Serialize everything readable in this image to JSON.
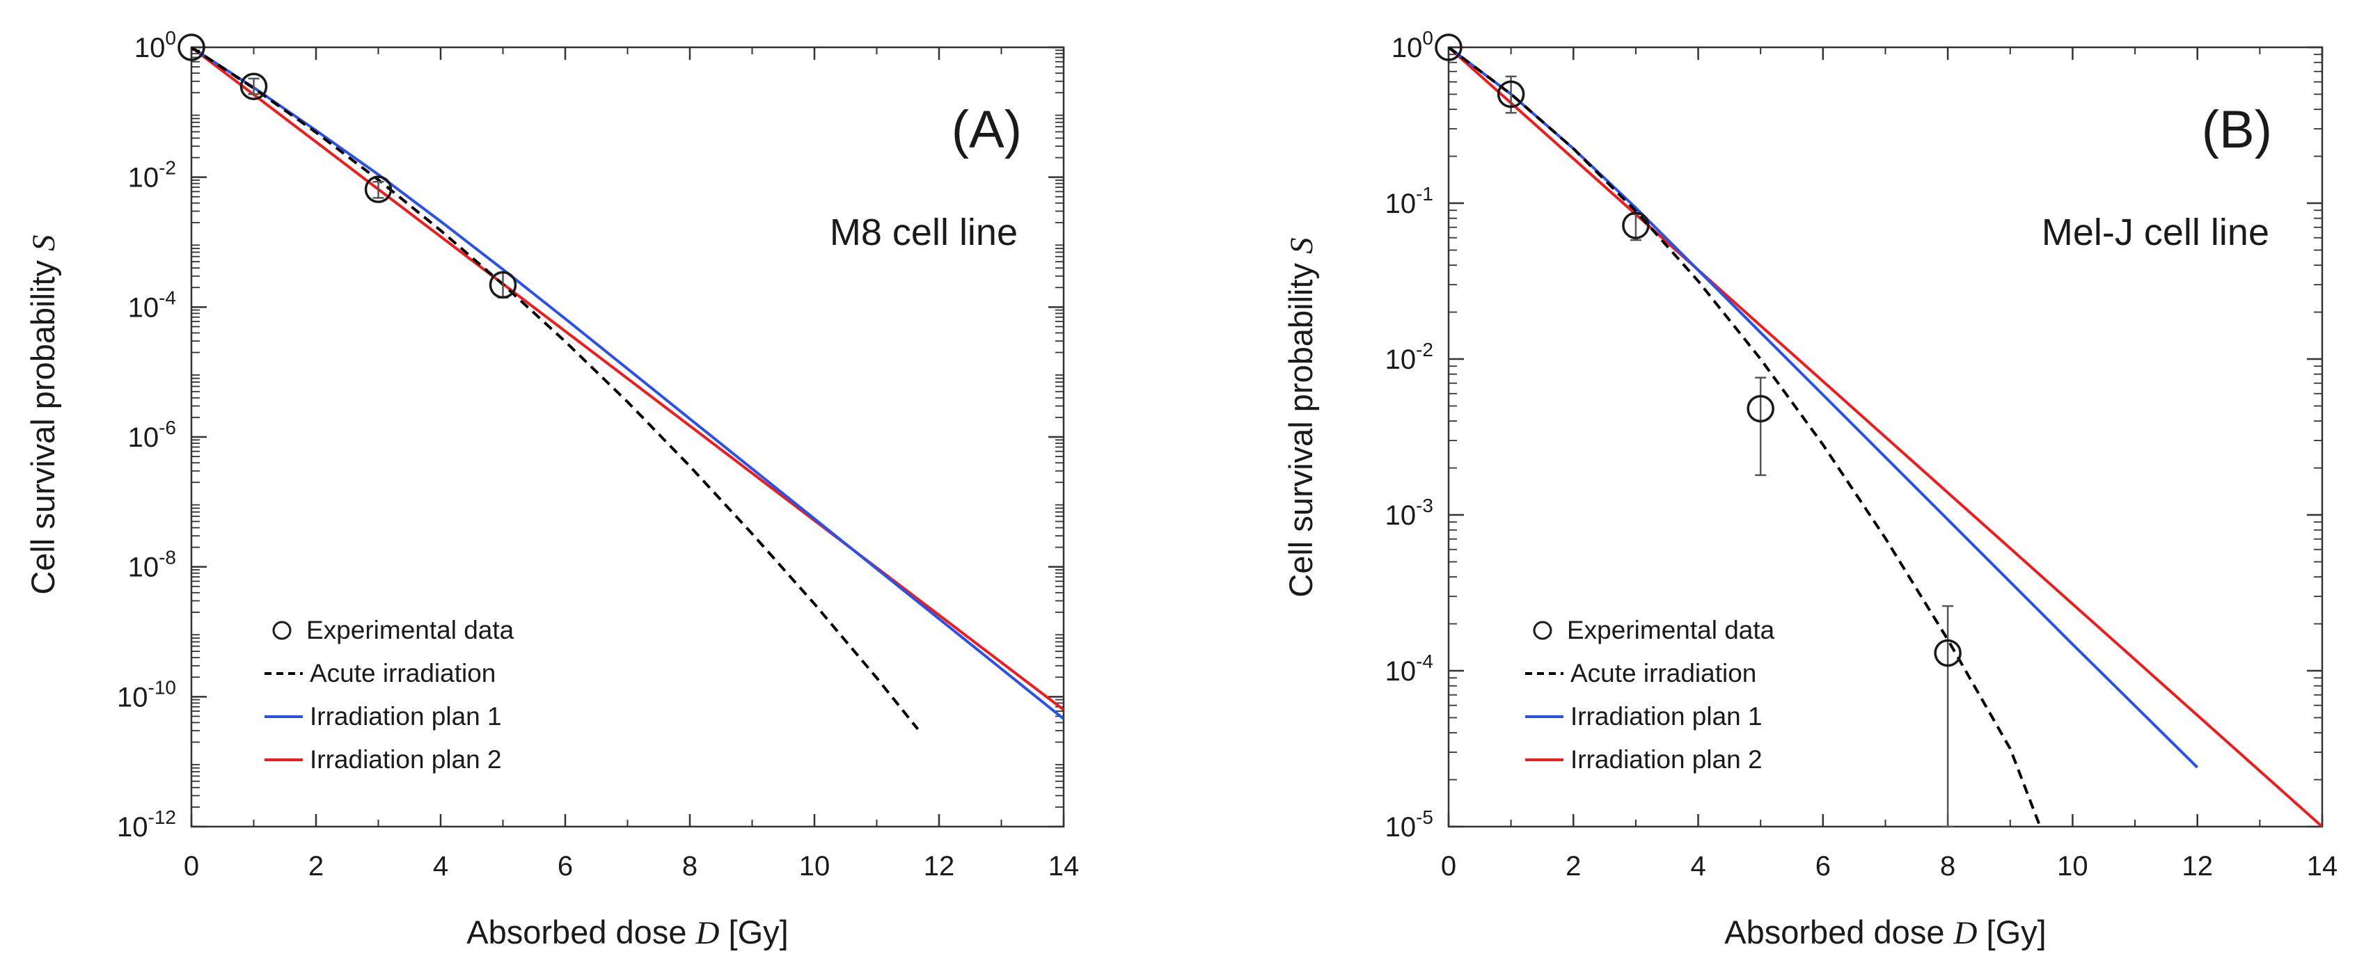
{
  "colors": {
    "acute": "#000000",
    "plan1": "#2a52e8",
    "plan2": "#ee1c1c",
    "axis": "#333333",
    "marker": "#1a1a1a"
  },
  "chart_data": [
    {
      "type": "line",
      "panel_label": "(A)",
      "cell_line": "M8 cell line",
      "xlabel": "Absorbed dose D [Gy]",
      "xlabel_parts": [
        "Absorbed dose ",
        "D",
        " [Gy]"
      ],
      "ylabel": "Cell survival probability S",
      "ylabel_parts": [
        "Cell survival probability ",
        "S"
      ],
      "xlim": [
        0,
        14
      ],
      "xticks": [
        0,
        2,
        4,
        6,
        8,
        10,
        12,
        14
      ],
      "yscale": "log",
      "ylim_exp": [
        -12,
        0
      ],
      "yticks_exp": [
        0,
        -2,
        -4,
        -6,
        -8,
        -10,
        -12
      ],
      "legend_position": "bottom-left",
      "legend": [
        "Experimental data",
        "Acute irradiation",
        "Irradiation plan 1",
        "Irradiation plan 2"
      ],
      "experimental": [
        {
          "x": 0,
          "y": 1.0,
          "err_low": 1.0,
          "err_high": 1.0
        },
        {
          "x": 1,
          "y": 0.25,
          "err_low": 0.19,
          "err_high": 0.33
        },
        {
          "x": 3,
          "y": 0.0065,
          "err_low": 0.0048,
          "err_high": 0.0085
        },
        {
          "x": 5,
          "y": 0.00022,
          "err_low": 0.00014,
          "err_high": 0.00034
        }
      ],
      "series": [
        {
          "name": "Acute irradiation",
          "style": "dashed",
          "color_key": "acute",
          "x": [
            0,
            1,
            2,
            3,
            4,
            5,
            6,
            7,
            8,
            9,
            10,
            11,
            11.66
          ],
          "log10_y": [
            0,
            -0.63,
            -1.31,
            -2.04,
            -2.82,
            -3.65,
            -4.53,
            -5.46,
            -6.45,
            -7.49,
            -8.57,
            -9.71,
            -10.5
          ]
        },
        {
          "name": "Irradiation plan 1",
          "style": "solid",
          "color_key": "plan1",
          "x": [
            0,
            1,
            2,
            3,
            4,
            5,
            6,
            8,
            10,
            12,
            14
          ],
          "log10_y": [
            0,
            -0.62,
            -1.28,
            -1.96,
            -2.68,
            -3.42,
            -4.18,
            -5.72,
            -7.26,
            -8.8,
            -10.34
          ]
        },
        {
          "name": "Irradiation plan 2",
          "style": "solid",
          "color_key": "plan2",
          "x": [
            0,
            14
          ],
          "log10_y": [
            0,
            -10.2
          ]
        }
      ]
    },
    {
      "type": "line",
      "panel_label": "(B)",
      "cell_line": "Mel-J cell line",
      "xlabel": "Absorbed dose D [Gy]",
      "xlabel_parts": [
        "Absorbed dose ",
        "D",
        " [Gy]"
      ],
      "ylabel": "Cell survival probability S",
      "ylabel_parts": [
        "Cell survival probability ",
        "S"
      ],
      "xlim": [
        0,
        14
      ],
      "xticks": [
        0,
        2,
        4,
        6,
        8,
        10,
        12,
        14
      ],
      "yscale": "log",
      "ylim_exp": [
        -5,
        0
      ],
      "yticks_exp": [
        0,
        -1,
        -2,
        -3,
        -4,
        -5
      ],
      "legend_position": "bottom-left",
      "legend": [
        "Experimental data",
        "Acute irradiation",
        "Irradiation plan 1",
        "Irradiation plan 2"
      ],
      "experimental": [
        {
          "x": 0,
          "y": 1.0,
          "err_low": 1.0,
          "err_high": 1.0
        },
        {
          "x": 1,
          "y": 0.5,
          "err_low": 0.38,
          "err_high": 0.65
        },
        {
          "x": 3,
          "y": 0.072,
          "err_low": 0.058,
          "err_high": 0.085
        },
        {
          "x": 5,
          "y": 0.0048,
          "err_low": 0.0018,
          "err_high": 0.0076
        },
        {
          "x": 8,
          "y": 0.00013,
          "err_low": 1e-05,
          "err_high": 0.00026
        }
      ],
      "series": [
        {
          "name": "Acute irradiation",
          "style": "dashed",
          "color_key": "acute",
          "x": [
            0,
            1,
            2,
            3,
            4,
            5,
            6,
            7,
            8,
            9,
            9.48
          ],
          "log10_y": [
            0,
            -0.3,
            -0.65,
            -1.05,
            -1.5,
            -2.0,
            -2.55,
            -3.15,
            -3.8,
            -4.5,
            -5.0
          ]
        },
        {
          "name": "Irradiation plan 1",
          "style": "solid",
          "color_key": "plan1",
          "x": [
            0,
            1,
            2,
            3,
            4,
            5,
            6,
            8,
            10,
            12
          ],
          "log10_y": [
            0,
            -0.3,
            -0.65,
            -1.03,
            -1.43,
            -1.83,
            -2.23,
            -3.03,
            -3.83,
            -4.62
          ]
        },
        {
          "name": "Irradiation plan 2",
          "style": "solid",
          "color_key": "plan2",
          "x": [
            0,
            14
          ],
          "log10_y": [
            0,
            -5.0
          ]
        }
      ]
    }
  ]
}
